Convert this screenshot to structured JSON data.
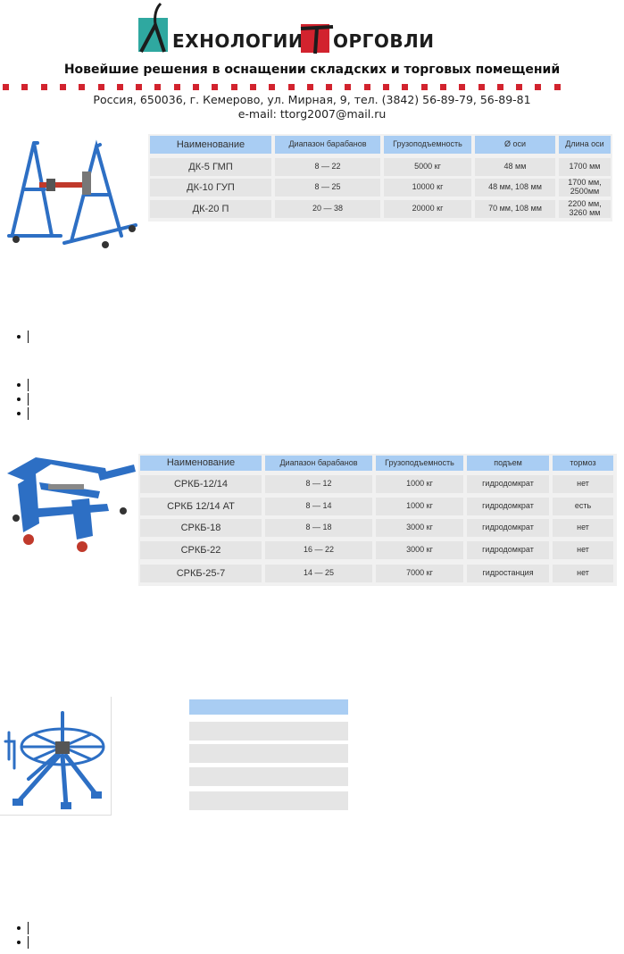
{
  "header": {
    "logo_word_1": "ЕХНОЛОГИИ",
    "logo_word_2": "ОРГОВЛИ",
    "tagline": "Новейшие решения в оснащении складских и торговых помещений",
    "address": "Россия, 650036, г. Кемерово, ул. Мирная, 9, тел. (3842) 56-89-79, 56-89-81",
    "email": "e-mail: ttorg2007@mail.ru",
    "colors": {
      "logo_teal": "#2fa8a0",
      "logo_red": "#d2232e",
      "dots": "#d2232e"
    }
  },
  "table1": {
    "headers": [
      "Наименование",
      "Диапазон барабанов",
      "Грузоподъемность",
      "Ø оси",
      "Длина оси"
    ],
    "rows": [
      [
        "ДК-5 ГМП",
        "8 — 22",
        "5000 кг",
        "48 мм",
        "1700 мм"
      ],
      [
        "ДК-10 ГУП",
        "8 — 25",
        "10000 кг",
        "48 мм, 108 мм",
        "1700 мм, 2500мм"
      ],
      [
        "ДК-20 П",
        "20 — 38",
        "20000 кг",
        "70 мм, 108 мм",
        "2200 мм, 3260 мм"
      ]
    ]
  },
  "table2": {
    "headers": [
      "Наименование",
      "Диапазон барабанов",
      "Грузоподъемность",
      "подъем",
      "тормоз"
    ],
    "rows": [
      [
        "СРКБ-12/14",
        "8 — 12",
        "1000 кг",
        "гидродомкрат",
        "нет"
      ],
      [
        "СРКБ 12/14 АТ",
        "8 — 14",
        "1000 кг",
        "гидродомкрат",
        "есть"
      ],
      [
        "СРКБ-18",
        "8 — 18",
        "3000 кг",
        "гидродомкрат",
        "нет"
      ],
      [
        "СРКБ-22",
        "16 — 22",
        "3000 кг",
        "гидродомкрат",
        "нет"
      ],
      [
        "СРКБ-25-7",
        "14 — 25",
        "7000 кг",
        "гидростанция",
        "нет"
      ]
    ]
  },
  "table3": {
    "rows": 5
  },
  "colors": {
    "table_header": "#a9cdf3",
    "table_body": "#e5e5e5",
    "machine_blue": "#2d6fc4"
  }
}
